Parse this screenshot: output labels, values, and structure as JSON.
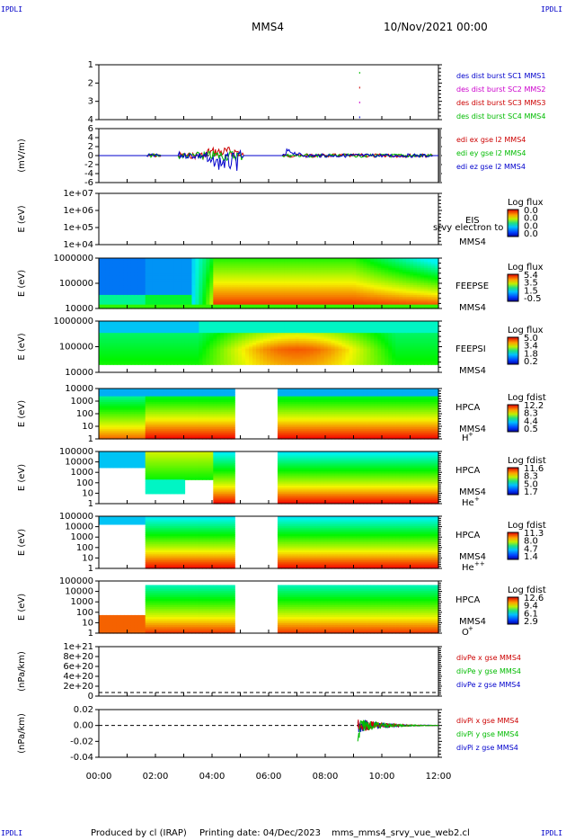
{
  "corners": {
    "tl": "IPDLI",
    "tr": "IPDLI",
    "bl": "IPDLI",
    "br": "IPDLI"
  },
  "header": {
    "spacecraft": "MMS4",
    "datetime": "10/Nov/2021 00:00"
  },
  "footer": {
    "producer": "Produced by cl (IRAP)",
    "print_date": "Printing date: 04/Dec/2023",
    "script": "mms_mms4_srvy_vue_web2.cl"
  },
  "colors": {
    "c1": "#0000cc",
    "c2": "#cc00cc",
    "c3": "#cc0000",
    "c4": "#00bb00"
  },
  "chart_data": [
    {
      "type": "line",
      "name": "burst",
      "yticks": [
        "1",
        "2",
        "3",
        "4"
      ],
      "legend": [
        "des dist burst SC1 MMS1",
        "des dist burst SC2 MMS2",
        "des dist burst SC3 MMS3",
        "des dist burst SC4 MMS4"
      ]
    },
    {
      "type": "line",
      "name": "edi",
      "ylabel": "(mV/m)",
      "yticks": [
        "6",
        "4",
        "2",
        "0",
        "-2",
        "-4",
        "-6"
      ],
      "legend": [
        "edi ex gse l2 MMS4",
        "edi ey gse l2 MMS4",
        "edi ez gse l2 MMS4"
      ]
    },
    {
      "type": "heatmap",
      "name": "eis",
      "ylabel": "E (eV)",
      "yticks": [
        "1e+07",
        "1e+06",
        "1e+05",
        "1e+04"
      ],
      "labels": [
        "EIS",
        "MMS4"
      ],
      "overlay": "srvy electron to",
      "cb_title": "Log flux",
      "cb_ticks": [
        "0.0",
        "0.0",
        "0.0",
        "0.0"
      ]
    },
    {
      "type": "heatmap",
      "name": "feepse",
      "ylabel": "E (eV)",
      "yticks": [
        "1000000",
        "100000",
        "10000"
      ],
      "labels": [
        "FEEPSE",
        "MMS4"
      ],
      "cb_title": "Log flux",
      "cb_ticks": [
        "5.4",
        "3.5",
        "1.5",
        "-0.5"
      ]
    },
    {
      "type": "heatmap",
      "name": "feepsi",
      "ylabel": "E (eV)",
      "yticks": [
        "1000000",
        "100000",
        "10000"
      ],
      "labels": [
        "FEEPSI",
        "MMS4"
      ],
      "cb_title": "Log flux",
      "cb_ticks": [
        "5.0",
        "3.4",
        "1.8",
        "0.2"
      ]
    },
    {
      "type": "heatmap",
      "name": "hpca-h",
      "ylabel": "E (eV)",
      "yticks": [
        "10000",
        "1000",
        "100",
        "10",
        "1"
      ],
      "labels": [
        "HPCA",
        "MMS4"
      ],
      "ion": "H",
      "ion_charge": "+",
      "cb_title": "Log fdist",
      "cb_ticks": [
        "12.2",
        "8.3",
        "4.4",
        "0.5"
      ]
    },
    {
      "type": "heatmap",
      "name": "hpca-he",
      "ylabel": "E (eV)",
      "yticks": [
        "100000",
        "10000",
        "1000",
        "100",
        "10",
        "1"
      ],
      "labels": [
        "HPCA",
        "MMS4"
      ],
      "ion": "He",
      "ion_charge": "+",
      "cb_title": "Log fdist",
      "cb_ticks": [
        "11.6",
        "8.3",
        "5.0",
        "1.7"
      ]
    },
    {
      "type": "heatmap",
      "name": "hpca-he2",
      "ylabel": "E (eV)",
      "yticks": [
        "100000",
        "10000",
        "1000",
        "100",
        "10",
        "1"
      ],
      "labels": [
        "HPCA",
        "MMS4"
      ],
      "ion": "He",
      "ion_charge": "++",
      "cb_title": "Log fdist",
      "cb_ticks": [
        "11.3",
        "8.0",
        "4.7",
        "1.4"
      ]
    },
    {
      "type": "heatmap",
      "name": "hpca-o",
      "ylabel": "E (eV)",
      "yticks": [
        "100000",
        "10000",
        "1000",
        "100",
        "10",
        "1"
      ],
      "labels": [
        "HPCA",
        "MMS4"
      ],
      "ion": "O",
      "ion_charge": "+",
      "cb_title": "Log fdist",
      "cb_ticks": [
        "12.6",
        "9.4",
        "6.1",
        "2.9"
      ]
    },
    {
      "type": "line",
      "name": "divpe",
      "ylabel": "(nPa/km)",
      "yticks": [
        "1e+21",
        "8e+20",
        "6e+20",
        "4e+20",
        "2e+20",
        "0"
      ],
      "legend": [
        "divPe x gse MMS4",
        "divPe y gse MMS4",
        "divPe z gse MMS4"
      ]
    },
    {
      "type": "line",
      "name": "divpi",
      "ylabel": "(nPa/km)",
      "yticks": [
        "0.02",
        "0.00",
        "-0.02",
        "-0.04"
      ],
      "legend": [
        "divPi x gse MMS4",
        "divPi y gse MMS4",
        "divPi z gse MMS4"
      ]
    }
  ],
  "xaxis": {
    "ticks": [
      "00:00",
      "02:00",
      "04:00",
      "06:00",
      "08:00",
      "10:00",
      "12:00"
    ]
  }
}
